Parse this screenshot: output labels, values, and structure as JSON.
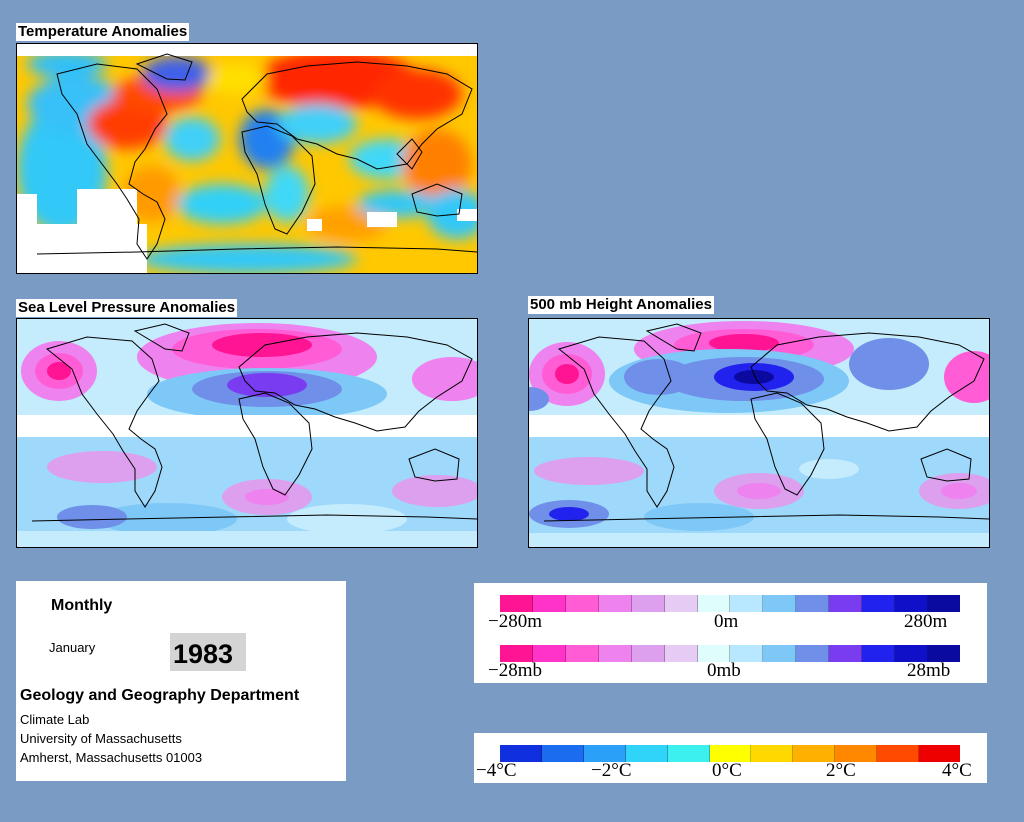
{
  "maps": {
    "temperature": {
      "title": "Temperature Anomalies"
    },
    "pressure": {
      "title": "Sea Level Pressure Anomalies"
    },
    "height": {
      "title": "500 mb Height Anomalies"
    }
  },
  "info": {
    "period": "Monthly",
    "month": "January",
    "year": "1983",
    "department": "Geology and Geography Department",
    "lab": "Climate Lab",
    "university": "University of Massachusetts",
    "address": "Amherst, Massachusetts 01003"
  },
  "legends": {
    "height_scale": {
      "labels": [
        "−280m",
        "0m",
        "280m"
      ]
    },
    "pressure_scale": {
      "labels": [
        "−28mb",
        "0mb",
        "28mb"
      ]
    },
    "temperature_scale": {
      "labels": [
        "−4°C",
        "−2°C",
        "0°C",
        "2°C",
        "4°C"
      ]
    }
  },
  "colors": {
    "background": "#7a9cc4",
    "anomaly_scale_magenta_to_blue": [
      "#ff1493",
      "#ff33c8",
      "#ff5cd6",
      "#ee82ee",
      "#dda0ee",
      "#e6ccf5",
      "#dffdfd",
      "#b8e8ff",
      "#7ec8f8",
      "#6f8fe8",
      "#7a3cf0",
      "#2222ee",
      "#1010c8",
      "#0a0aa0"
    ],
    "temperature_scale": [
      "#1030e0",
      "#1c6cf0",
      "#2aa0f8",
      "#30d4f8",
      "#3cf0f0",
      "#ffff00",
      "#ffd800",
      "#ffb000",
      "#ff8800",
      "#ff4a00",
      "#ee0000"
    ]
  }
}
